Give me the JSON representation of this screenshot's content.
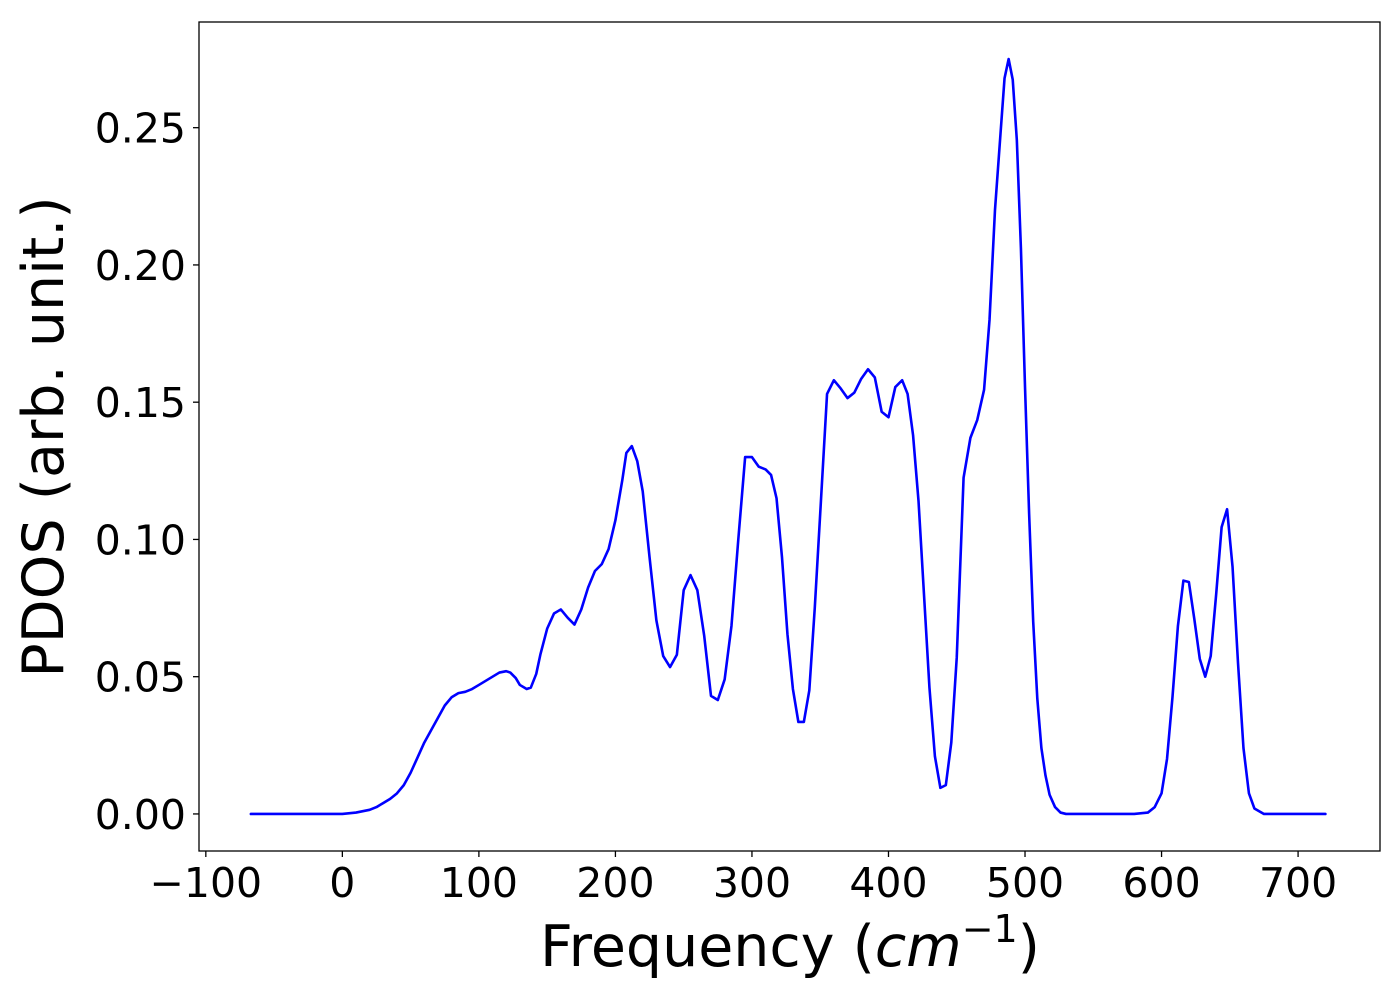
{
  "chart_data": {
    "type": "line",
    "title": "",
    "xlabel": "Frequency (",
    "xlabel_var": "cm",
    "xlabel_sup": "−1",
    "xlabel_close": ")",
    "ylabel": "PDOS (arb. unit.)",
    "xlim": [
      -105,
      760
    ],
    "ylim": [
      -0.0135,
      0.2885
    ],
    "grid": false,
    "legend": "none",
    "xticks": [
      -100,
      0,
      100,
      200,
      300,
      400,
      500,
      600,
      700
    ],
    "xtick_labels": [
      "−100",
      "0",
      "100",
      "200",
      "300",
      "400",
      "500",
      "600",
      "700"
    ],
    "yticks": [
      0.0,
      0.05,
      0.1,
      0.15,
      0.2,
      0.25
    ],
    "ytick_labels": [
      "0.00",
      "0.05",
      "0.10",
      "0.15",
      "0.20",
      "0.25"
    ],
    "series": [
      {
        "color": "#0000ff",
        "x": [
          -67,
          -40,
          -20,
          0,
          10,
          20,
          25,
          30,
          35,
          40,
          45,
          50,
          55,
          60,
          65,
          70,
          75,
          80,
          85,
          90,
          95,
          100,
          105,
          110,
          115,
          120,
          123,
          127,
          130,
          135,
          138,
          142,
          145,
          150,
          155,
          160,
          165,
          170,
          175,
          180,
          185,
          190,
          195,
          200,
          205,
          208,
          212,
          216,
          220,
          225,
          230,
          235,
          240,
          245,
          250,
          255,
          260,
          265,
          270,
          275,
          280,
          285,
          290,
          295,
          300,
          305,
          310,
          314,
          318,
          322,
          326,
          330,
          334,
          338,
          342,
          346,
          350,
          355,
          360,
          365,
          370,
          375,
          380,
          385,
          390,
          395,
          400,
          405,
          410,
          414,
          418,
          422,
          426,
          430,
          434,
          438,
          442,
          446,
          450,
          455,
          460,
          465,
          470,
          474,
          478,
          482,
          485,
          488,
          491,
          494,
          497,
          500,
          503,
          506,
          509,
          512,
          515,
          518,
          522,
          526,
          530,
          540,
          560,
          580,
          590,
          595,
          600,
          604,
          608,
          612,
          616,
          620,
          624,
          628,
          632,
          636,
          640,
          644,
          648,
          652,
          656,
          660,
          664,
          668,
          675,
          690,
          720
        ],
        "y": [
          0.0,
          0.0,
          0.0,
          0.0,
          0.0005,
          0.0015,
          0.0025,
          0.004,
          0.0055,
          0.0075,
          0.0105,
          0.015,
          0.0205,
          0.026,
          0.0305,
          0.035,
          0.0395,
          0.0425,
          0.044,
          0.0445,
          0.0455,
          0.047,
          0.0485,
          0.05,
          0.0515,
          0.052,
          0.0515,
          0.0495,
          0.047,
          0.0455,
          0.046,
          0.051,
          0.058,
          0.0675,
          0.073,
          0.0745,
          0.0715,
          0.069,
          0.0745,
          0.0825,
          0.0885,
          0.091,
          0.0965,
          0.107,
          0.1215,
          0.1315,
          0.134,
          0.1285,
          0.1175,
          0.0935,
          0.0705,
          0.0575,
          0.0535,
          0.058,
          0.0815,
          0.087,
          0.0815,
          0.065,
          0.043,
          0.0415,
          0.049,
          0.0685,
          0.1,
          0.13,
          0.13,
          0.1265,
          0.1255,
          0.1235,
          0.115,
          0.0935,
          0.0655,
          0.0455,
          0.0335,
          0.0335,
          0.045,
          0.075,
          0.1095,
          0.153,
          0.158,
          0.155,
          0.1515,
          0.1535,
          0.1585,
          0.162,
          0.159,
          0.1465,
          0.1445,
          0.1555,
          0.158,
          0.153,
          0.138,
          0.114,
          0.08,
          0.046,
          0.021,
          0.0095,
          0.0105,
          0.026,
          0.057,
          0.1225,
          0.137,
          0.1435,
          0.1545,
          0.18,
          0.22,
          0.2475,
          0.268,
          0.275,
          0.2675,
          0.2455,
          0.206,
          0.1555,
          0.1095,
          0.07,
          0.042,
          0.024,
          0.014,
          0.007,
          0.0025,
          0.0005,
          0.0,
          0.0,
          0.0,
          0.0,
          0.0005,
          0.0025,
          0.0075,
          0.02,
          0.0425,
          0.0685,
          0.085,
          0.0845,
          0.071,
          0.0565,
          0.05,
          0.0575,
          0.08,
          0.1045,
          0.111,
          0.09,
          0.055,
          0.024,
          0.0075,
          0.002,
          0.0,
          0.0,
          0.0
        ]
      }
    ]
  }
}
